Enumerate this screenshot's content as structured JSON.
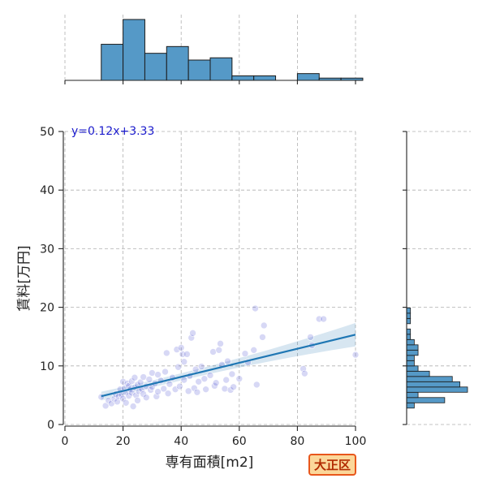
{
  "chart_data": {
    "type": "scatter",
    "xlabel": "専有面積[m2]",
    "ylabel": "賃料[万円]",
    "xlim": [
      0,
      100
    ],
    "ylim": [
      0,
      50
    ],
    "xticks": [
      "0",
      "20",
      "40",
      "60",
      "80",
      "100"
    ],
    "yticks": [
      "0",
      "10",
      "20",
      "30",
      "40",
      "50"
    ],
    "grid": true,
    "annotation": "y=0.12x+3.33",
    "regression": {
      "slope": 0.12,
      "intercept": 3.33,
      "x_range": [
        12.5,
        100
      ]
    },
    "colors": {
      "points": "#4a4fd0",
      "line": "#1f77b4",
      "hist": "#5599c7",
      "annotation": "#1a1acc"
    },
    "points": [
      [
        12.5,
        4.7
      ],
      [
        14,
        3.2
      ],
      [
        15,
        4.1
      ],
      [
        16,
        3.6
      ],
      [
        17,
        4.4
      ],
      [
        17.5,
        5.2
      ],
      [
        18,
        3.9
      ],
      [
        18.5,
        4.8
      ],
      [
        19,
        6.0
      ],
      [
        19.5,
        5.1
      ],
      [
        20,
        4.4
      ],
      [
        20,
        7.3
      ],
      [
        20.5,
        6.2
      ],
      [
        21,
        5.5
      ],
      [
        21,
        3.7
      ],
      [
        21.5,
        7.0
      ],
      [
        22,
        6.6
      ],
      [
        22,
        4.9
      ],
      [
        22.5,
        6.0
      ],
      [
        23,
        7.4
      ],
      [
        23,
        5.4
      ],
      [
        23.5,
        3.1
      ],
      [
        24,
        6.3
      ],
      [
        24,
        8.0
      ],
      [
        24.5,
        5.0
      ],
      [
        25,
        6.8
      ],
      [
        25,
        4.1
      ],
      [
        25.5,
        5.7
      ],
      [
        26,
        7.2
      ],
      [
        26.5,
        6.0
      ],
      [
        27,
        8.1
      ],
      [
        27,
        5.2
      ],
      [
        28,
        6.5
      ],
      [
        28,
        4.6
      ],
      [
        29,
        7.7
      ],
      [
        29.5,
        5.9
      ],
      [
        30,
        8.8
      ],
      [
        30,
        6.4
      ],
      [
        31,
        7.0
      ],
      [
        31.5,
        4.8
      ],
      [
        32,
        8.5
      ],
      [
        32,
        5.6
      ],
      [
        33,
        7.5
      ],
      [
        34,
        6.1
      ],
      [
        34.5,
        9.0
      ],
      [
        35,
        12.2
      ],
      [
        35.5,
        5.3
      ],
      [
        36,
        6.9
      ],
      [
        37,
        8.0
      ],
      [
        38,
        6.0
      ],
      [
        38.5,
        12.8
      ],
      [
        39,
        9.8
      ],
      [
        39.5,
        6.5
      ],
      [
        40,
        13.1
      ],
      [
        40.5,
        12.0
      ],
      [
        41,
        7.6
      ],
      [
        41,
        10.7
      ],
      [
        42,
        12.0
      ],
      [
        42.5,
        5.7
      ],
      [
        43,
        8.3
      ],
      [
        43.5,
        14.8
      ],
      [
        44,
        15.6
      ],
      [
        44.5,
        6.2
      ],
      [
        45,
        9.4
      ],
      [
        45.5,
        5.5
      ],
      [
        46,
        7.3
      ],
      [
        47,
        9.9
      ],
      [
        48,
        7.8
      ],
      [
        48.5,
        6.0
      ],
      [
        50,
        8.4
      ],
      [
        51,
        12.4
      ],
      [
        51.5,
        6.6
      ],
      [
        52,
        7.1
      ],
      [
        53,
        12.7
      ],
      [
        53.5,
        13.8
      ],
      [
        54,
        10.2
      ],
      [
        55,
        6.1
      ],
      [
        55.5,
        7.6
      ],
      [
        56,
        10.8
      ],
      [
        57,
        5.9
      ],
      [
        57.5,
        8.6
      ],
      [
        58,
        6.4
      ],
      [
        60,
        7.8
      ],
      [
        62,
        12.1
      ],
      [
        63,
        10.6
      ],
      [
        65,
        12.7
      ],
      [
        65.5,
        19.8
      ],
      [
        66,
        6.8
      ],
      [
        68,
        14.9
      ],
      [
        68.5,
        16.9
      ],
      [
        82,
        9.5
      ],
      [
        82.5,
        8.7
      ],
      [
        84.5,
        14.9
      ],
      [
        85,
        13.5
      ],
      [
        87.5,
        18.0
      ],
      [
        89,
        18.0
      ],
      [
        100,
        11.9
      ]
    ],
    "x_histogram": {
      "bin_width": 7.5,
      "bins": [
        {
          "start": 12.5,
          "count": 16
        },
        {
          "start": 20,
          "count": 27
        },
        {
          "start": 27.5,
          "count": 12
        },
        {
          "start": 35,
          "count": 15
        },
        {
          "start": 42.5,
          "count": 9
        },
        {
          "start": 50,
          "count": 10
        },
        {
          "start": 57.5,
          "count": 2
        },
        {
          "start": 65,
          "count": 2
        },
        {
          "start": 72.5,
          "count": 0
        },
        {
          "start": 80,
          "count": 3
        },
        {
          "start": 87.5,
          "count": 1
        },
        {
          "start": 95,
          "count": 1
        }
      ]
    },
    "y_histogram": {
      "bin_width": 0.9,
      "bins": [
        {
          "start": 2.8,
          "count": 2
        },
        {
          "start": 3.7,
          "count": 10
        },
        {
          "start": 4.6,
          "count": 3
        },
        {
          "start": 5.5,
          "count": 16
        },
        {
          "start": 6.4,
          "count": 14
        },
        {
          "start": 7.3,
          "count": 12
        },
        {
          "start": 8.2,
          "count": 6
        },
        {
          "start": 9.1,
          "count": 3
        },
        {
          "start": 10.0,
          "count": 2
        },
        {
          "start": 10.9,
          "count": 2
        },
        {
          "start": 11.8,
          "count": 3
        },
        {
          "start": 12.7,
          "count": 3
        },
        {
          "start": 13.6,
          "count": 2
        },
        {
          "start": 14.5,
          "count": 1
        },
        {
          "start": 15.4,
          "count": 1
        },
        {
          "start": 16.3,
          "count": 0
        },
        {
          "start": 17.2,
          "count": 1
        },
        {
          "start": 18.1,
          "count": 1
        },
        {
          "start": 19.0,
          "count": 1
        }
      ]
    },
    "badge_label": "大正区"
  }
}
